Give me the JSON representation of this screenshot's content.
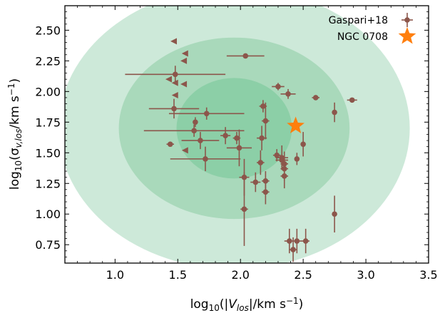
{
  "chart_data": {
    "type": "scatter",
    "xlabel": "log10(|Vlos|/km s−1)",
    "ylabel": "log10(σv,los/km s−1)",
    "xlim": [
      0.6,
      3.5
    ],
    "ylim": [
      0.6,
      2.7
    ],
    "x_ticks": [
      "1.0",
      "1.5",
      "2.0",
      "2.5",
      "3.0",
      "3.5"
    ],
    "y_ticks": [
      "0.75",
      "1.00",
      "1.25",
      "1.50",
      "1.75",
      "2.00",
      "2.25",
      "2.50"
    ],
    "legend_position": "top-right",
    "contours": [
      {
        "level": "outer",
        "center": [
          1.95,
          1.7
        ],
        "rx": 1.4,
        "ry": 1.15,
        "color": "#cde9d9"
      },
      {
        "level": "middle",
        "center": [
          1.95,
          1.7
        ],
        "rx": 0.92,
        "ry": 0.74,
        "color": "#a9d9bb"
      },
      {
        "level": "inner",
        "center": [
          1.95,
          1.7
        ],
        "rx": 0.46,
        "ry": 0.41,
        "color": "#8ccfa7"
      }
    ],
    "series": [
      {
        "name": "Gaspari+18",
        "color": "#8c564b",
        "points": [
          {
            "x": 2.04,
            "y": 2.29,
            "xerr": 0.15,
            "yerr": 0.02
          },
          {
            "x": 1.48,
            "y": 2.14,
            "xerr": 0.4,
            "yerr": 0.07
          },
          {
            "x": 2.3,
            "y": 2.04,
            "xerr": 0.05,
            "yerr": 0.03
          },
          {
            "x": 2.38,
            "y": 1.98,
            "xerr": 0.06,
            "yerr": 0.04
          },
          {
            "x": 2.6,
            "y": 1.95,
            "xerr": 0.03,
            "yerr": 0.02
          },
          {
            "x": 2.89,
            "y": 1.93,
            "xerr": 0.04,
            "yerr": 0.02
          },
          {
            "x": 1.47,
            "y": 1.86,
            "xerr": 0.2,
            "yerr": 0.08
          },
          {
            "x": 2.18,
            "y": 1.88,
            "xerr": 0.03,
            "yerr": 0.05
          },
          {
            "x": 1.73,
            "y": 1.82,
            "xerr": 0.3,
            "yerr": 0.05
          },
          {
            "x": 2.75,
            "y": 1.83,
            "xerr": 0.0,
            "yerr": 0.08
          },
          {
            "x": 1.64,
            "y": 1.75,
            "xerr": 0.0,
            "yerr": 0.04
          },
          {
            "x": 2.2,
            "y": 1.76,
            "xerr": 0.03,
            "yerr": 0.15
          },
          {
            "x": 1.63,
            "y": 1.68,
            "xerr": 0.4,
            "yerr": 0.05
          },
          {
            "x": 1.88,
            "y": 1.64,
            "xerr": 0.04,
            "yerr": 0.07
          },
          {
            "x": 1.97,
            "y": 1.62,
            "xerr": 0.03,
            "yerr": 0.05
          },
          {
            "x": 2.17,
            "y": 1.62,
            "xerr": 0.04,
            "yerr": 0.1
          },
          {
            "x": 1.68,
            "y": 1.6,
            "xerr": 0.15,
            "yerr": 0.07
          },
          {
            "x": 1.44,
            "y": 1.57,
            "xerr": 0.03,
            "yerr": 0.02
          },
          {
            "x": 2.5,
            "y": 1.57,
            "xerr": 0.0,
            "yerr": 0.1
          },
          {
            "x": 1.99,
            "y": 1.54,
            "xerr": 0.1,
            "yerr": 0.15
          },
          {
            "x": 2.29,
            "y": 1.48,
            "xerr": 0.03,
            "yerr": 0.05
          },
          {
            "x": 2.33,
            "y": 1.46,
            "xerr": 0.05,
            "yerr": 0.1
          },
          {
            "x": 2.45,
            "y": 1.45,
            "xerr": 0.0,
            "yerr": 0.05
          },
          {
            "x": 1.72,
            "y": 1.45,
            "xerr": 0.28,
            "yerr": 0.1
          },
          {
            "x": 2.33,
            "y": 1.44,
            "xerr": 0.05,
            "yerr": 0.05
          },
          {
            "x": 2.35,
            "y": 1.41,
            "xerr": 0.03,
            "yerr": 0.1
          },
          {
            "x": 2.16,
            "y": 1.42,
            "xerr": 0.03,
            "yerr": 0.1
          },
          {
            "x": 2.35,
            "y": 1.37,
            "xerr": 0.03,
            "yerr": 0.1
          },
          {
            "x": 2.35,
            "y": 1.31,
            "xerr": 0.03,
            "yerr": 0.1
          },
          {
            "x": 2.03,
            "y": 1.3,
            "xerr": 0.04,
            "yerr": 0.15
          },
          {
            "x": 2.2,
            "y": 1.27,
            "xerr": 0.03,
            "yerr": 0.08
          },
          {
            "x": 2.12,
            "y": 1.26,
            "xerr": 0.04,
            "yerr": 0.08
          },
          {
            "x": 2.2,
            "y": 1.18,
            "xerr": 0.03,
            "yerr": 0.1
          },
          {
            "x": 2.03,
            "y": 1.04,
            "xerr": 0.03,
            "yerr": 0.3
          },
          {
            "x": 2.75,
            "y": 1.0,
            "xerr": 0.0,
            "yerr": 0.15
          },
          {
            "x": 2.39,
            "y": 0.78,
            "xerr": 0.0,
            "yerr": 0.1
          },
          {
            "x": 2.45,
            "y": 0.78,
            "xerr": 0.1,
            "yerr": 0.1
          },
          {
            "x": 2.52,
            "y": 0.78,
            "xerr": 0.0,
            "yerr": 0.1
          },
          {
            "x": 2.42,
            "y": 0.71,
            "xerr": 0.03,
            "yerr": 0.1
          }
        ],
        "upper_limits": [
          {
            "x": 1.47,
            "y": 2.41
          },
          {
            "x": 1.56,
            "y": 2.31
          },
          {
            "x": 1.55,
            "y": 2.25
          },
          {
            "x": 1.43,
            "y": 2.1
          },
          {
            "x": 1.48,
            "y": 2.07
          },
          {
            "x": 1.55,
            "y": 2.06
          },
          {
            "x": 1.48,
            "y": 1.97
          },
          {
            "x": 1.56,
            "y": 1.52
          }
        ]
      },
      {
        "name": "NGC 0708",
        "color": "#ff7f0e",
        "marker": "star",
        "points": [
          {
            "x": 2.44,
            "y": 1.72
          }
        ]
      }
    ]
  }
}
